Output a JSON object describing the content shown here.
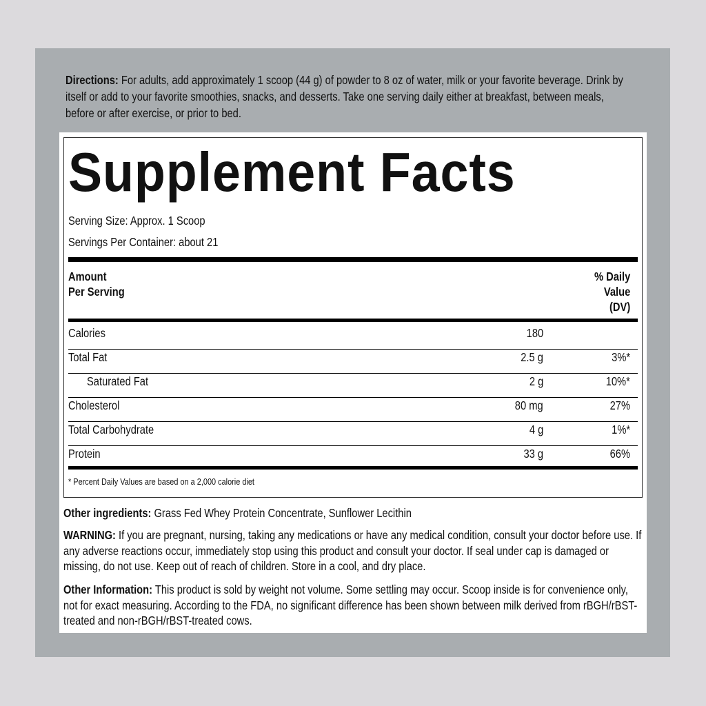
{
  "directions": {
    "label": "Directions:",
    "text": " For adults, add approximately 1 scoop (44 g) of powder to 8 oz of water, milk or your favorite beverage. Drink by itself or add to your favorite smoothies, snacks, and desserts. Take one serving daily either at breakfast, between meals, before or after exercise, or prior to bed."
  },
  "facts": {
    "title": "Supplement Facts",
    "serving_size": "Serving Size: Approx. 1 Scoop",
    "servings_per_container": "Servings Per Container: about 21",
    "header": {
      "amount_line1": "Amount",
      "amount_line2": "Per Serving",
      "dv_line1": "% Daily",
      "dv_line2": "Value",
      "dv_line3": "(DV)"
    },
    "rows": [
      {
        "name": "Calories",
        "amount": "180",
        "dv": ""
      },
      {
        "name": "Total Fat",
        "amount": "2.5 g",
        "dv": "3%*"
      },
      {
        "name": "Saturated Fat",
        "amount": "2 g",
        "dv": "10%*"
      },
      {
        "name": "Cholesterol",
        "amount": "80 mg",
        "dv": "27%"
      },
      {
        "name": "Total Carbohydrate",
        "amount": "4 g",
        "dv": "1%*"
      },
      {
        "name": "Protein",
        "amount": "33 g",
        "dv": "66%"
      }
    ],
    "footnote": "* Percent Daily Values are based on a 2,000 calorie diet"
  },
  "other_ingredients": {
    "label": "Other ingredients:",
    "text": " Grass Fed Whey Protein Concentrate, Sunflower Lecithin"
  },
  "warning": {
    "label": "WARNING:",
    "text": " If you are pregnant, nursing, taking any medications or have any medical condition, consult your doctor before use. If any adverse reactions occur, immediately stop using this product and consult your doctor. If seal under cap is damaged or missing, do not use. Keep out of reach of children. Store in a cool, and dry place."
  },
  "other_information": {
    "label": "Other Information:",
    "text": " This product is sold by weight not volume. Some settling may occur. Scoop inside is for convenience only, not for exact measuring. According to the FDA, no significant difference has been shown between milk derived from rBGH/rBST-treated and non-rBGH/rBST-treated cows."
  }
}
